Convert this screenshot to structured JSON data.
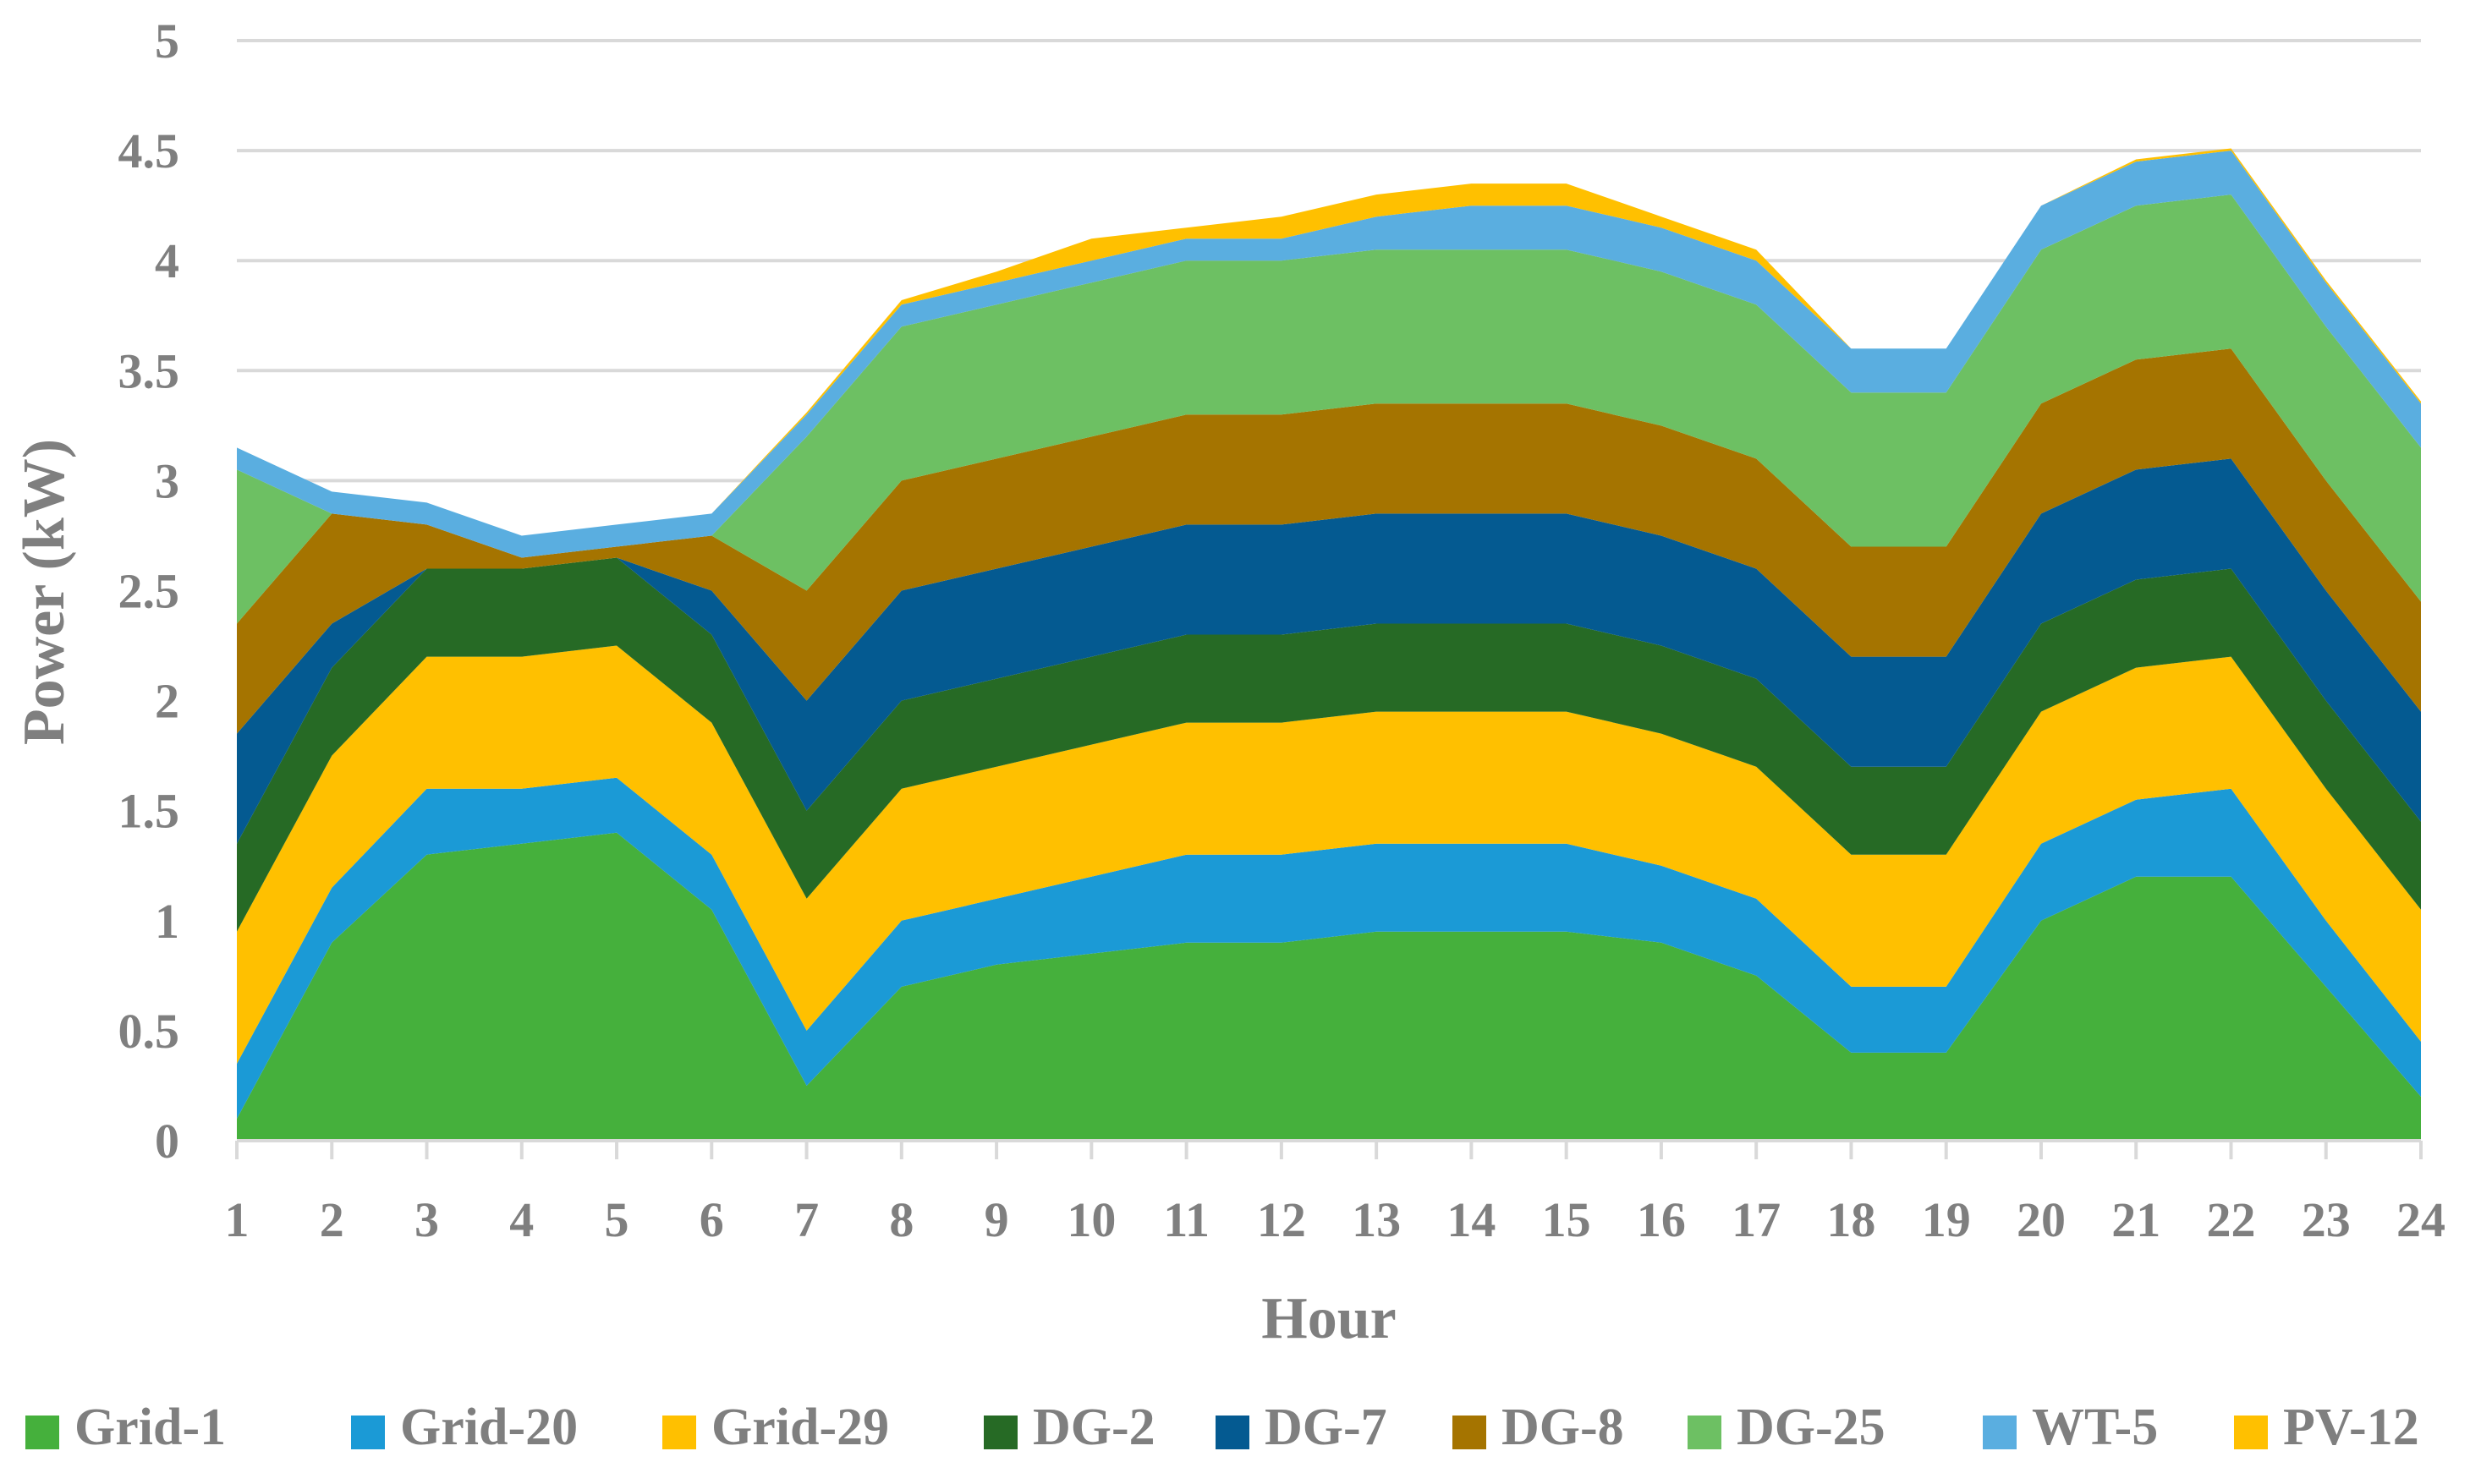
{
  "chart_data": {
    "type": "area",
    "stacked": true,
    "title": "",
    "xlabel": "Hour",
    "ylabel": "Power (kW)",
    "ylim": [
      0,
      5
    ],
    "ytick_step": 0.5,
    "yticks": [
      "0",
      "0.5",
      "1",
      "1.5",
      "2",
      "2.5",
      "3",
      "3.5",
      "4",
      "4.5",
      "5"
    ],
    "categories": [
      "1",
      "2",
      "3",
      "4",
      "5",
      "6",
      "7",
      "8",
      "9",
      "10",
      "11",
      "12",
      "13",
      "14",
      "15",
      "16",
      "17",
      "18",
      "19",
      "20",
      "21",
      "22",
      "23",
      "24"
    ],
    "grid": true,
    "legend_position": "bottom",
    "series": [
      {
        "name": "Grid-1",
        "color": "#45b03c",
        "values": [
          0.1,
          0.9,
          1.3,
          1.35,
          1.4,
          1.05,
          0.25,
          0.7,
          0.8,
          0.85,
          0.9,
          0.9,
          0.95,
          0.95,
          0.95,
          0.9,
          0.75,
          0.4,
          0.4,
          1.0,
          1.2,
          1.2,
          0.7,
          0.2
        ]
      },
      {
        "name": "Grid-20",
        "color": "#1b9ad6",
        "values": [
          0.25,
          0.25,
          0.3,
          0.25,
          0.25,
          0.25,
          0.25,
          0.3,
          0.3,
          0.35,
          0.4,
          0.4,
          0.4,
          0.4,
          0.4,
          0.35,
          0.35,
          0.3,
          0.3,
          0.35,
          0.35,
          0.4,
          0.3,
          0.25
        ]
      },
      {
        "name": "Grid-29",
        "color": "#ffc000",
        "values": [
          0.6,
          0.6,
          0.6,
          0.6,
          0.6,
          0.6,
          0.6,
          0.6,
          0.6,
          0.6,
          0.6,
          0.6,
          0.6,
          0.6,
          0.6,
          0.6,
          0.6,
          0.6,
          0.6,
          0.6,
          0.6,
          0.6,
          0.6,
          0.6
        ]
      },
      {
        "name": "DG-2",
        "color": "#266a25",
        "values": [
          0.4,
          0.4,
          0.4,
          0.4,
          0.4,
          0.4,
          0.4,
          0.4,
          0.4,
          0.4,
          0.4,
          0.4,
          0.4,
          0.4,
          0.4,
          0.4,
          0.4,
          0.4,
          0.4,
          0.4,
          0.4,
          0.4,
          0.4,
          0.4
        ]
      },
      {
        "name": "DG-7",
        "color": "#045a91",
        "values": [
          0.5,
          0.2,
          0,
          0,
          0,
          0.2,
          0.5,
          0.5,
          0.5,
          0.5,
          0.5,
          0.5,
          0.5,
          0.5,
          0.5,
          0.5,
          0.5,
          0.5,
          0.5,
          0.5,
          0.5,
          0.5,
          0.5,
          0.5
        ]
      },
      {
        "name": "DG-8",
        "color": "#a57400",
        "values": [
          0.5,
          0.5,
          0.2,
          0.05,
          0.05,
          0.25,
          0.5,
          0.5,
          0.5,
          0.5,
          0.5,
          0.5,
          0.5,
          0.5,
          0.5,
          0.5,
          0.5,
          0.5,
          0.5,
          0.5,
          0.5,
          0.5,
          0.5,
          0.5
        ]
      },
      {
        "name": "DG-25",
        "color": "#6dc063",
        "values": [
          0.7,
          0,
          0,
          0,
          0,
          0,
          0.7,
          0.7,
          0.7,
          0.7,
          0.7,
          0.7,
          0.7,
          0.7,
          0.7,
          0.7,
          0.7,
          0.7,
          0.7,
          0.7,
          0.7,
          0.7,
          0.7,
          0.7
        ]
      },
      {
        "name": "WT-5",
        "color": "#5aaee0",
        "values": [
          0.1,
          0.1,
          0.1,
          0.1,
          0.1,
          0.1,
          0.1,
          0.1,
          0.1,
          0.1,
          0.1,
          0.1,
          0.15,
          0.2,
          0.2,
          0.2,
          0.2,
          0.2,
          0.2,
          0.2,
          0.2,
          0.2,
          0.2,
          0.2
        ]
      },
      {
        "name": "PV-12",
        "color": "#ffc000",
        "values": [
          0,
          0,
          0,
          0,
          0,
          0,
          0.01,
          0.02,
          0.05,
          0.1,
          0.05,
          0.1,
          0.1,
          0.1,
          0.1,
          0.05,
          0.05,
          0,
          0,
          0,
          0.01,
          0.01,
          0.01,
          0.01
        ]
      }
    ]
  }
}
